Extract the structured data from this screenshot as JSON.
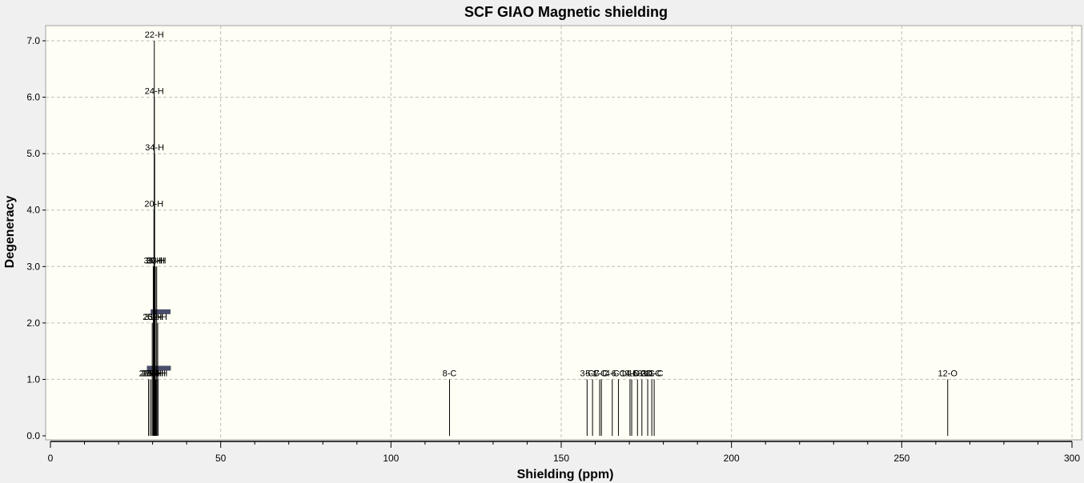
{
  "chart_data": {
    "type": "bar",
    "title": "SCF GIAO Magnetic shielding",
    "xlabel": "Shielding (ppm)",
    "ylabel": "Degeneracy",
    "xlim": [
      0,
      300
    ],
    "ylim": [
      0,
      7.0
    ],
    "xticks": [
      0,
      50,
      100,
      150,
      200,
      250,
      300
    ],
    "yticks": [
      0.0,
      1.0,
      2.0,
      3.0,
      4.0,
      5.0,
      6.0,
      7.0
    ],
    "grid": true,
    "colors": {
      "plot_bg": "#fefef4",
      "line": "#000000",
      "cluster_bar": "#2a2e52",
      "frame": "#a0a0a0"
    },
    "peaks": [
      {
        "x": 30.5,
        "y": 7.0,
        "label": "22-H"
      },
      {
        "x": 30.5,
        "y": 6.0,
        "label": "24-H"
      },
      {
        "x": 30.6,
        "y": 5.0,
        "label": "34-H"
      },
      {
        "x": 30.4,
        "y": 4.0,
        "label": "20-H"
      },
      {
        "x": 30.2,
        "y": 3.0,
        "label": "35-H"
      },
      {
        "x": 30.8,
        "y": 3.0,
        "label": "36-H"
      },
      {
        "x": 31.2,
        "y": 3.0,
        "label": "33-H"
      },
      {
        "x": 29.9,
        "y": 2.0,
        "label": "25-H"
      },
      {
        "x": 30.4,
        "y": 2.0,
        "label": "31-H"
      },
      {
        "x": 31.5,
        "y": 2.0,
        "label": "32-H"
      },
      {
        "x": 28.8,
        "y": 1.0,
        "label": "26-H"
      },
      {
        "x": 29.3,
        "y": 1.0,
        "label": "27-H"
      },
      {
        "x": 29.8,
        "y": 1.0,
        "label": "28-H"
      },
      {
        "x": 30.3,
        "y": 1.0,
        "label": "29-H"
      },
      {
        "x": 31.0,
        "y": 1.0,
        "label": "30-H"
      },
      {
        "x": 31.6,
        "y": 1.0,
        "label": "37-H"
      },
      {
        "x": 117.2,
        "y": 1.0,
        "label": "8-C"
      },
      {
        "x": 157.6,
        "y": 1.0,
        "label": "3-C"
      },
      {
        "x": 159.2,
        "y": 1.0,
        "label": "5-C"
      },
      {
        "x": 161.3,
        "y": 1.0,
        "label": "1-C"
      },
      {
        "x": 161.8,
        "y": 1.0,
        "label": "7-C"
      },
      {
        "x": 165.0,
        "y": 1.0,
        "label": "4-C"
      },
      {
        "x": 166.8,
        "y": 1.0,
        "label": "6-C"
      },
      {
        "x": 170.2,
        "y": 1.0,
        "label": "14-C"
      },
      {
        "x": 170.7,
        "y": 1.0,
        "label": "9-C"
      },
      {
        "x": 172.4,
        "y": 1.0,
        "label": "15-C"
      },
      {
        "x": 173.7,
        "y": 1.0,
        "label": "16-C"
      },
      {
        "x": 175.4,
        "y": 1.0,
        "label": "2-C"
      },
      {
        "x": 176.6,
        "y": 1.0,
        "label": "10-C"
      },
      {
        "x": 177.3,
        "y": 1.0,
        "label": "11-C"
      },
      {
        "x": 263.5,
        "y": 1.0,
        "label": "12-O"
      }
    ]
  }
}
